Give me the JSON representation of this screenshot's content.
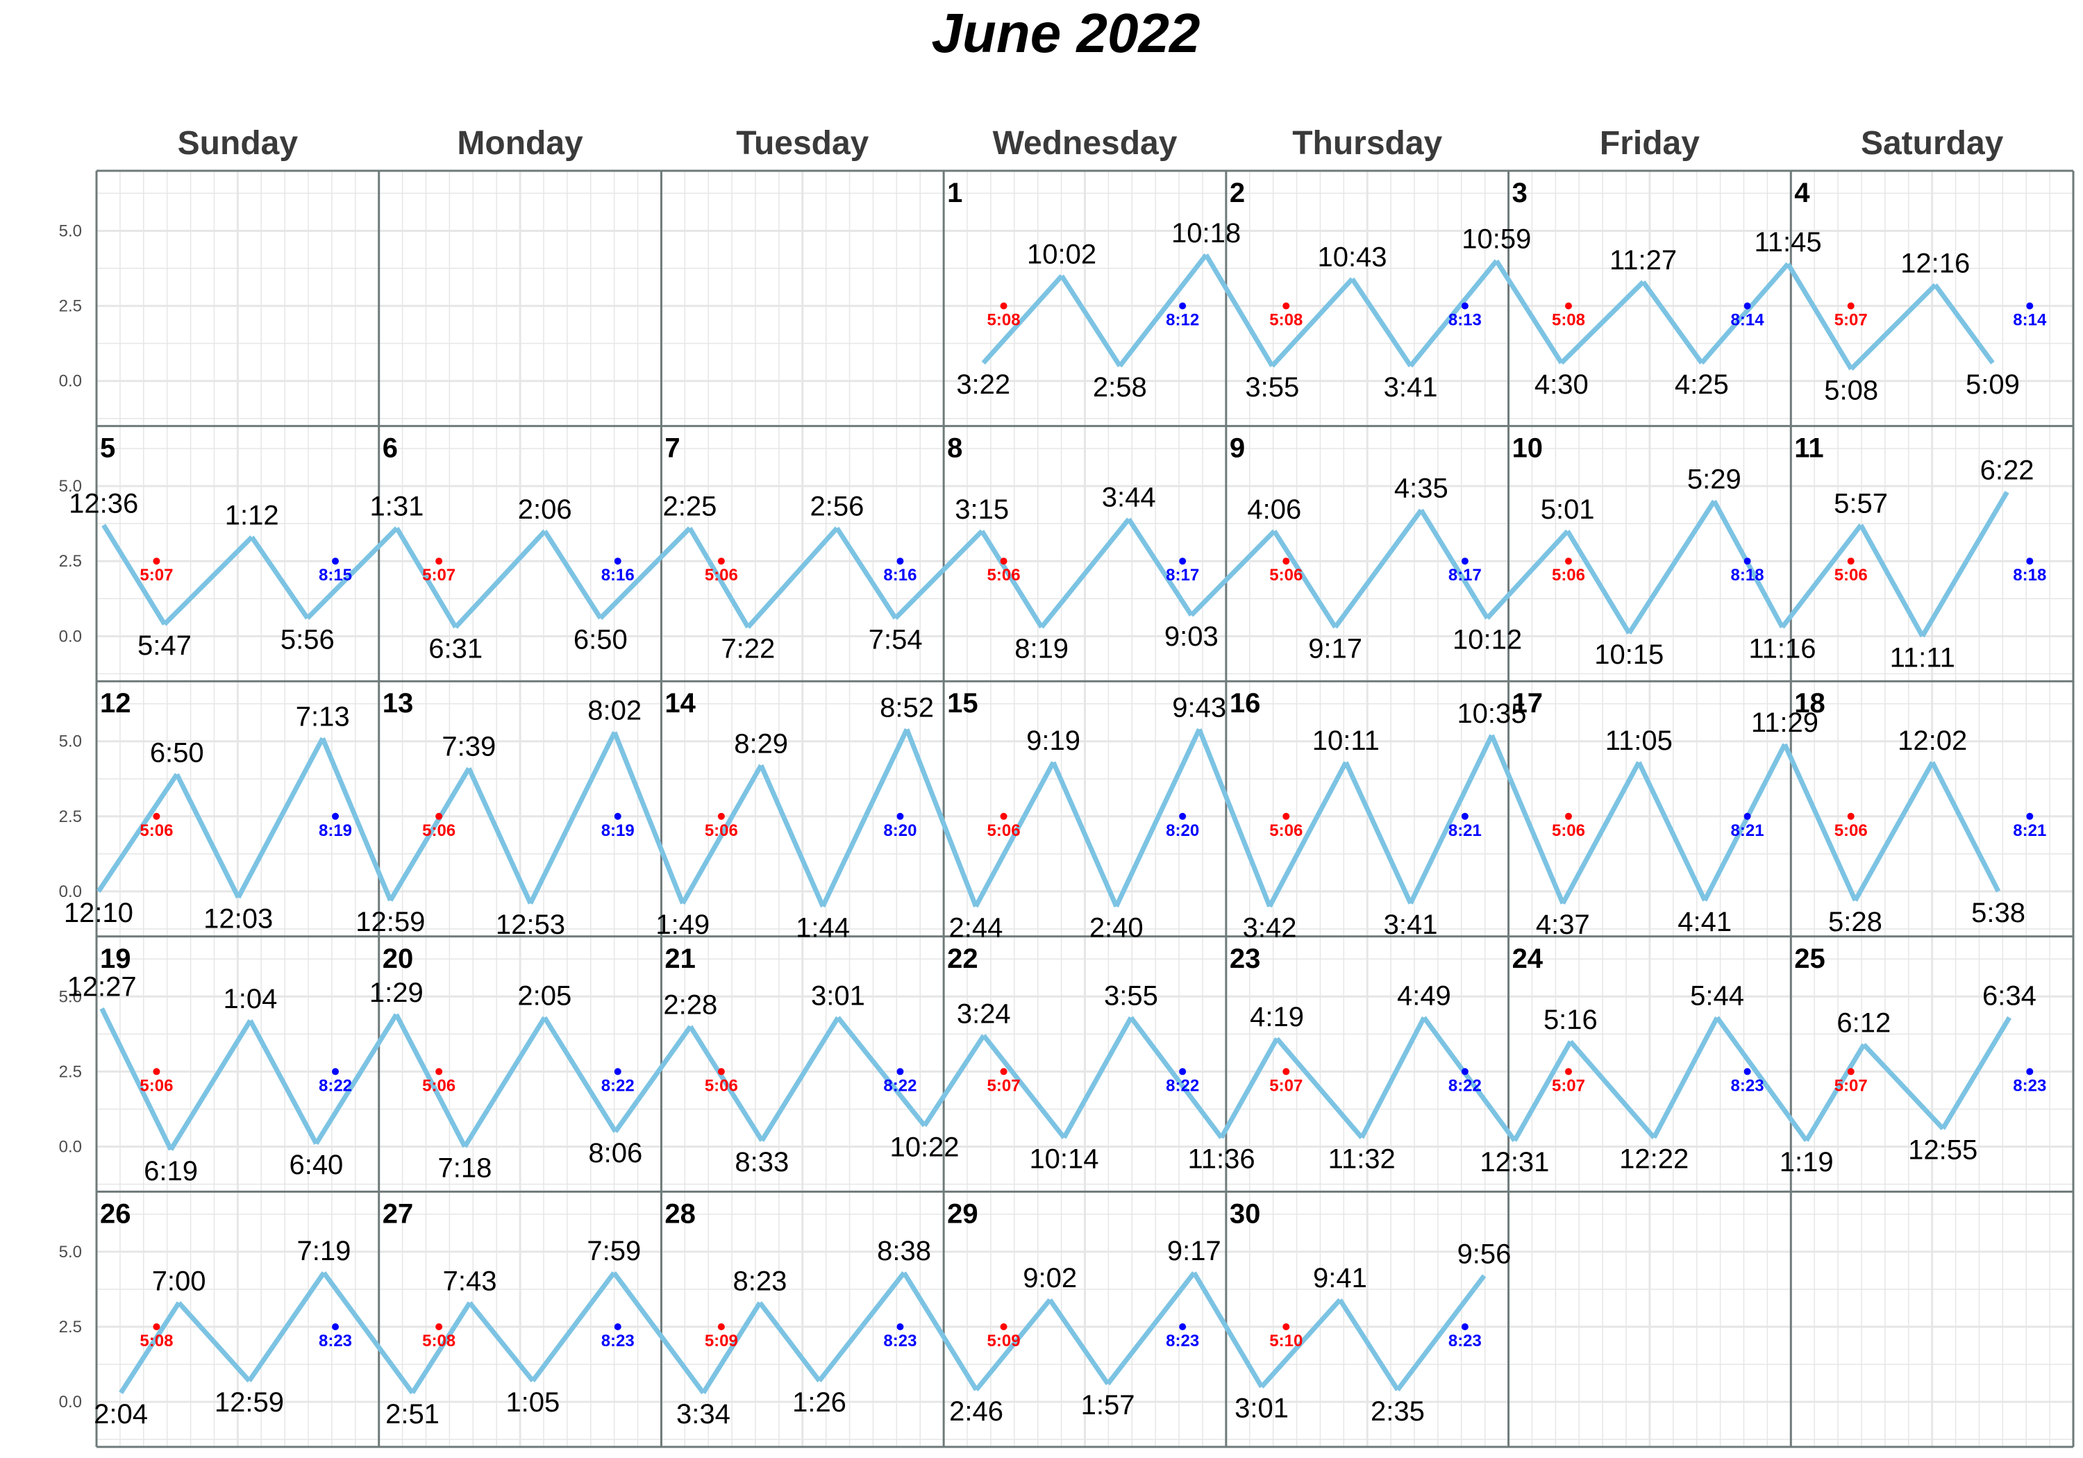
{
  "chart_data": {
    "type": "line",
    "title": "June 2022",
    "weekdays": [
      "Sunday",
      "Monday",
      "Tuesday",
      "Wednesday",
      "Thursday",
      "Friday",
      "Saturday"
    ],
    "y_ticks": [
      "5.0",
      "2.5",
      "0.0"
    ],
    "ylim": [
      -1.5,
      7.0
    ],
    "first_weekday_index": 3,
    "colors": {
      "tide_line": "#7cc3e3",
      "sunrise": "#ff0000",
      "sunset": "#0000ff",
      "cell_border": "#6f7a7a",
      "grid": "#e6e6e6"
    },
    "days": [
      {
        "day": 1,
        "sunrise": "5:08",
        "sunset": "8:12",
        "tides": [
          {
            "time": "3:22",
            "t": 3.37,
            "h": 0.6
          },
          {
            "time": "10:02",
            "t": 10.03,
            "h": 3.5
          },
          {
            "time": "2:58",
            "t": 14.97,
            "h": 0.5
          },
          {
            "time": "10:18",
            "t": 22.3,
            "h": 4.2
          }
        ]
      },
      {
        "day": 2,
        "sunrise": "5:08",
        "sunset": "8:13",
        "tides": [
          {
            "time": "3:55",
            "t": 3.92,
            "h": 0.5
          },
          {
            "time": "10:43",
            "t": 10.72,
            "h": 3.4
          },
          {
            "time": "3:41",
            "t": 15.68,
            "h": 0.5
          },
          {
            "time": "10:59",
            "t": 22.98,
            "h": 4.0
          }
        ]
      },
      {
        "day": 3,
        "sunrise": "5:08",
        "sunset": "8:14",
        "tides": [
          {
            "time": "4:30",
            "t": 4.5,
            "h": 0.6
          },
          {
            "time": "11:27",
            "t": 11.45,
            "h": 3.3
          },
          {
            "time": "4:25",
            "t": 16.42,
            "h": 0.6
          },
          {
            "time": "11:45",
            "t": 23.75,
            "h": 3.9
          }
        ]
      },
      {
        "day": 4,
        "sunrise": "5:07",
        "sunset": "8:14",
        "tides": [
          {
            "time": "5:08",
            "t": 5.13,
            "h": 0.4
          },
          {
            "time": "12:16",
            "t": 12.27,
            "h": 3.2
          },
          {
            "time": "5:09",
            "t": 17.15,
            "h": 0.6
          }
        ]
      },
      {
        "day": 5,
        "sunrise": "5:07",
        "sunset": "8:15",
        "tides": [
          {
            "time": "12:36",
            "t": 0.6,
            "h": 3.7
          },
          {
            "time": "5:47",
            "t": 5.78,
            "h": 0.4
          },
          {
            "time": "1:12",
            "t": 13.2,
            "h": 3.3
          },
          {
            "time": "5:56",
            "t": 17.93,
            "h": 0.6
          }
        ]
      },
      {
        "day": 6,
        "sunrise": "5:07",
        "sunset": "8:16",
        "tides": [
          {
            "time": "1:31",
            "t": 1.52,
            "h": 3.6
          },
          {
            "time": "6:31",
            "t": 6.52,
            "h": 0.3
          },
          {
            "time": "2:06",
            "t": 14.1,
            "h": 3.5
          },
          {
            "time": "6:50",
            "t": 18.83,
            "h": 0.6
          }
        ]
      },
      {
        "day": 7,
        "sunrise": "5:06",
        "sunset": "8:16",
        "tides": [
          {
            "time": "2:25",
            "t": 2.42,
            "h": 3.6
          },
          {
            "time": "7:22",
            "t": 7.37,
            "h": 0.3
          },
          {
            "time": "2:56",
            "t": 14.93,
            "h": 3.6
          },
          {
            "time": "7:54",
            "t": 19.9,
            "h": 0.6
          }
        ]
      },
      {
        "day": 8,
        "sunrise": "5:06",
        "sunset": "8:17",
        "tides": [
          {
            "time": "3:15",
            "t": 3.25,
            "h": 3.5
          },
          {
            "time": "8:19",
            "t": 8.32,
            "h": 0.3
          },
          {
            "time": "3:44",
            "t": 15.73,
            "h": 3.9
          },
          {
            "time": "9:03",
            "t": 21.05,
            "h": 0.7
          }
        ]
      },
      {
        "day": 9,
        "sunrise": "5:06",
        "sunset": "8:17",
        "tides": [
          {
            "time": "4:06",
            "t": 4.1,
            "h": 3.5
          },
          {
            "time": "9:17",
            "t": 9.28,
            "h": 0.3
          },
          {
            "time": "4:35",
            "t": 16.58,
            "h": 4.2
          },
          {
            "time": "10:12",
            "t": 22.2,
            "h": 0.6
          }
        ]
      },
      {
        "day": 10,
        "sunrise": "5:06",
        "sunset": "8:18",
        "tides": [
          {
            "time": "5:01",
            "t": 5.02,
            "h": 3.5
          },
          {
            "time": "10:15",
            "t": 10.25,
            "h": 0.1
          },
          {
            "time": "5:29",
            "t": 17.48,
            "h": 4.5
          },
          {
            "time": "11:16",
            "t": 23.27,
            "h": 0.3
          }
        ]
      },
      {
        "day": 11,
        "sunrise": "5:06",
        "sunset": "8:18",
        "tides": [
          {
            "time": "5:57",
            "t": 5.95,
            "h": 3.7
          },
          {
            "time": "11:11",
            "t": 11.18,
            "h": 0.0
          },
          {
            "time": "6:22",
            "t": 18.37,
            "h": 4.8
          }
        ]
      },
      {
        "day": 12,
        "sunrise": "5:06",
        "sunset": "8:19",
        "tides": [
          {
            "time": "12:10",
            "t": 0.17,
            "h": 0.0
          },
          {
            "time": "6:50",
            "t": 6.83,
            "h": 3.9
          },
          {
            "time": "12:03",
            "t": 12.05,
            "h": -0.2
          },
          {
            "time": "7:13",
            "t": 19.22,
            "h": 5.1
          }
        ]
      },
      {
        "day": 13,
        "sunrise": "5:06",
        "sunset": "8:19",
        "tides": [
          {
            "time": "12:59",
            "t": 0.98,
            "h": -0.3
          },
          {
            "time": "7:39",
            "t": 7.65,
            "h": 4.1
          },
          {
            "time": "12:53",
            "t": 12.88,
            "h": -0.4
          },
          {
            "time": "8:02",
            "t": 20.03,
            "h": 5.3
          }
        ]
      },
      {
        "day": 14,
        "sunrise": "5:06",
        "sunset": "8:20",
        "tides": [
          {
            "time": "1:49",
            "t": 1.82,
            "h": -0.4
          },
          {
            "time": "8:29",
            "t": 8.48,
            "h": 4.2
          },
          {
            "time": "1:44",
            "t": 13.73,
            "h": -0.5
          },
          {
            "time": "8:52",
            "t": 20.87,
            "h": 5.4
          }
        ]
      },
      {
        "day": 15,
        "sunrise": "5:06",
        "sunset": "8:20",
        "tides": [
          {
            "time": "2:44",
            "t": 2.73,
            "h": -0.5
          },
          {
            "time": "9:19",
            "t": 9.32,
            "h": 4.3
          },
          {
            "time": "2:40",
            "t": 14.67,
            "h": -0.5
          },
          {
            "time": "9:43",
            "t": 21.72,
            "h": 5.4
          }
        ]
      },
      {
        "day": 16,
        "sunrise": "5:06",
        "sunset": "8:21",
        "tides": [
          {
            "time": "3:42",
            "t": 3.7,
            "h": -0.5
          },
          {
            "time": "10:11",
            "t": 10.18,
            "h": 4.3
          },
          {
            "time": "3:41",
            "t": 15.68,
            "h": -0.4
          },
          {
            "time": "10:35",
            "t": 22.58,
            "h": 5.2
          }
        ]
      },
      {
        "day": 17,
        "sunrise": "5:06",
        "sunset": "8:21",
        "tides": [
          {
            "time": "4:37",
            "t": 4.62,
            "h": -0.4
          },
          {
            "time": "11:05",
            "t": 11.08,
            "h": 4.3
          },
          {
            "time": "4:41",
            "t": 16.68,
            "h": -0.3
          },
          {
            "time": "11:29",
            "t": 23.48,
            "h": 4.9
          }
        ]
      },
      {
        "day": 18,
        "sunrise": "5:06",
        "sunset": "8:21",
        "tides": [
          {
            "time": "5:28",
            "t": 5.47,
            "h": -0.3
          },
          {
            "time": "12:02",
            "t": 12.03,
            "h": 4.3
          },
          {
            "time": "5:38",
            "t": 17.63,
            "h": 0.0
          }
        ]
      },
      {
        "day": 19,
        "sunrise": "5:06",
        "sunset": "8:22",
        "tides": [
          {
            "time": "12:27",
            "t": 0.45,
            "h": 4.6
          },
          {
            "time": "6:19",
            "t": 6.32,
            "h": -0.1
          },
          {
            "time": "1:04",
            "t": 13.07,
            "h": 4.2
          },
          {
            "time": "6:40",
            "t": 18.67,
            "h": 0.1
          }
        ]
      },
      {
        "day": 20,
        "sunrise": "5:06",
        "sunset": "8:22",
        "tides": [
          {
            "time": "1:29",
            "t": 1.48,
            "h": 4.4
          },
          {
            "time": "7:18",
            "t": 7.3,
            "h": 0.0
          },
          {
            "time": "2:05",
            "t": 14.08,
            "h": 4.3
          },
          {
            "time": "8:06",
            "t": 20.1,
            "h": 0.5
          }
        ]
      },
      {
        "day": 21,
        "sunrise": "5:06",
        "sunset": "8:22",
        "tides": [
          {
            "time": "2:28",
            "t": 2.47,
            "h": 4.0
          },
          {
            "time": "8:33",
            "t": 8.55,
            "h": 0.2
          },
          {
            "time": "3:01",
            "t": 15.02,
            "h": 4.3
          },
          {
            "time": "10:22",
            "t": 22.37,
            "h": 0.7
          }
        ]
      },
      {
        "day": 22,
        "sunrise": "5:07",
        "sunset": "8:22",
        "tides": [
          {
            "time": "3:24",
            "t": 3.4,
            "h": 3.7
          },
          {
            "time": "10:14",
            "t": 10.23,
            "h": 0.3
          },
          {
            "time": "3:55",
            "t": 15.92,
            "h": 4.3
          },
          {
            "time": "11:36",
            "t": 23.6,
            "h": 0.3
          }
        ]
      },
      {
        "day": 23,
        "sunrise": "5:07",
        "sunset": "8:22",
        "tides": [
          {
            "time": "4:19",
            "t": 4.32,
            "h": 3.6
          },
          {
            "time": "11:32",
            "t": 11.53,
            "h": 0.3
          },
          {
            "time": "4:49",
            "t": 16.82,
            "h": 4.3
          }
        ]
      },
      {
        "day": 24,
        "sunrise": "5:07",
        "sunset": "8:23",
        "tides": [
          {
            "time": "12:31",
            "t": 0.52,
            "h": 0.2
          },
          {
            "time": "5:16",
            "t": 5.27,
            "h": 3.5
          },
          {
            "time": "12:22",
            "t": 12.37,
            "h": 0.3
          },
          {
            "time": "5:44",
            "t": 17.73,
            "h": 4.3
          }
        ]
      },
      {
        "day": 25,
        "sunrise": "5:07",
        "sunset": "8:23",
        "tides": [
          {
            "time": "1:19",
            "t": 1.32,
            "h": 0.2
          },
          {
            "time": "6:12",
            "t": 6.2,
            "h": 3.4
          },
          {
            "time": "12:55",
            "t": 12.92,
            "h": 0.6
          },
          {
            "time": "6:34",
            "t": 18.57,
            "h": 4.3
          }
        ]
      },
      {
        "day": 26,
        "sunrise": "5:08",
        "sunset": "8:23",
        "tides": [
          {
            "time": "2:04",
            "t": 2.07,
            "h": 0.3
          },
          {
            "time": "7:00",
            "t": 7.0,
            "h": 3.3
          },
          {
            "time": "12:59",
            "t": 12.98,
            "h": 0.7
          },
          {
            "time": "7:19",
            "t": 19.32,
            "h": 4.3
          }
        ]
      },
      {
        "day": 27,
        "sunrise": "5:08",
        "sunset": "8:23",
        "tides": [
          {
            "time": "2:51",
            "t": 2.85,
            "h": 0.3
          },
          {
            "time": "7:43",
            "t": 7.72,
            "h": 3.3
          },
          {
            "time": "1:05",
            "t": 13.08,
            "h": 0.7
          },
          {
            "time": "7:59",
            "t": 19.98,
            "h": 4.3
          }
        ]
      },
      {
        "day": 28,
        "sunrise": "5:09",
        "sunset": "8:23",
        "tides": [
          {
            "time": "3:34",
            "t": 3.57,
            "h": 0.3
          },
          {
            "time": "8:23",
            "t": 8.38,
            "h": 3.3
          },
          {
            "time": "1:26",
            "t": 13.43,
            "h": 0.7
          },
          {
            "time": "8:38",
            "t": 20.63,
            "h": 4.3
          }
        ]
      },
      {
        "day": 29,
        "sunrise": "5:09",
        "sunset": "8:23",
        "tides": [
          {
            "time": "2:46",
            "t": 2.77,
            "h": 0.4
          },
          {
            "time": "9:02",
            "t": 9.03,
            "h": 3.4
          },
          {
            "time": "1:57",
            "t": 13.95,
            "h": 0.6
          },
          {
            "time": "9:17",
            "t": 21.28,
            "h": 4.3
          }
        ]
      },
      {
        "day": 30,
        "sunrise": "5:10",
        "sunset": "8:23",
        "tides": [
          {
            "time": "3:01",
            "t": 3.02,
            "h": 0.5
          },
          {
            "time": "9:41",
            "t": 9.68,
            "h": 3.4
          },
          {
            "time": "2:35",
            "t": 14.58,
            "h": 0.4
          },
          {
            "time": "9:56",
            "t": 21.93,
            "h": 4.2
          }
        ]
      }
    ]
  }
}
